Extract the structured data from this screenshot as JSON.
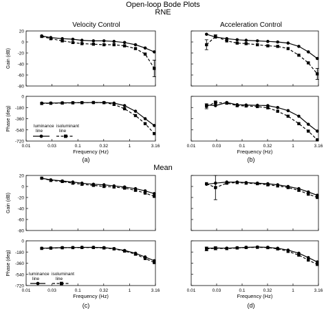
{
  "figure": {
    "title": "Open-loop Bode Plots",
    "row_labels": [
      "RNE",
      "Mean"
    ],
    "column_titles": [
      "Velocity Control",
      "Acceleration Control"
    ],
    "panel_labels": [
      "(a)",
      "(b)",
      "(c)",
      "(d)"
    ],
    "legend": {
      "solid": [
        "luminance",
        "line"
      ],
      "dashed": [
        "isoluminant",
        "line"
      ]
    },
    "styles": {
      "solid_color": "#000000",
      "dashed_color": "#000000"
    }
  },
  "chart_data": [
    {
      "type": "line",
      "panel": "a",
      "plot": "gain",
      "xlabel": "",
      "ylabel": "Gain (dB)",
      "x_scale": "log",
      "xlim": [
        0.01,
        3.16
      ],
      "ylim": [
        -80,
        20
      ],
      "x_ticks": [],
      "y_ticks": [
        "20",
        "0",
        "-20",
        "-40",
        "-60",
        "-80"
      ],
      "series": [
        {
          "style": "solid",
          "x": [
            0.02,
            0.03,
            0.05,
            0.08,
            0.12,
            0.2,
            0.32,
            0.5,
            0.8,
            1.3,
            2.0,
            3.0
          ],
          "y": [
            11,
            8,
            6,
            5,
            3,
            2,
            2,
            1,
            -1,
            -5,
            -11,
            -18
          ]
        },
        {
          "style": "dashed",
          "x": [
            0.02,
            0.03,
            0.05,
            0.08,
            0.12,
            0.2,
            0.32,
            0.5,
            0.8,
            1.3,
            2.0,
            3.0
          ],
          "y": [
            10,
            6,
            2,
            -1,
            -3,
            -4,
            -5,
            -5,
            -7,
            -12,
            -22,
            -48
          ],
          "err": [
            0,
            0,
            0,
            0,
            0,
            0,
            0,
            0,
            0,
            0,
            0,
            15
          ]
        }
      ]
    },
    {
      "type": "line",
      "panel": "a",
      "plot": "phase",
      "xlabel": "Frequency (Hz)",
      "ylabel": "Phase (deg)",
      "x_scale": "log",
      "xlim": [
        0.01,
        3.16
      ],
      "ylim": [
        -720,
        0
      ],
      "x_ticks": [
        "0.01",
        "0.03",
        "0.1",
        "0.32",
        "1",
        "3.16"
      ],
      "y_ticks": [
        "0",
        "-180",
        "-360",
        "-540",
        "-720"
      ],
      "series": [
        {
          "style": "solid",
          "x": [
            0.02,
            0.03,
            0.05,
            0.08,
            0.12,
            0.2,
            0.32,
            0.5,
            0.8,
            1.3,
            2.0,
            3.0
          ],
          "y": [
            -110,
            -108,
            -105,
            -103,
            -101,
            -100,
            -100,
            -110,
            -150,
            -240,
            -360,
            -470
          ]
        },
        {
          "style": "dashed",
          "x": [
            0.02,
            0.03,
            0.05,
            0.08,
            0.12,
            0.2,
            0.32,
            0.5,
            0.8,
            1.3,
            2.0,
            3.0
          ],
          "y": [
            -115,
            -112,
            -108,
            -105,
            -102,
            -100,
            -102,
            -130,
            -200,
            -310,
            -440,
            -600
          ]
        }
      ]
    },
    {
      "type": "line",
      "panel": "b",
      "plot": "gain",
      "xlabel": "",
      "ylabel": "",
      "x_scale": "log",
      "xlim": [
        0.01,
        3.16
      ],
      "ylim": [
        -80,
        20
      ],
      "x_ticks": [],
      "y_ticks": [],
      "series": [
        {
          "style": "solid",
          "x": [
            0.02,
            0.03,
            0.05,
            0.08,
            0.12,
            0.2,
            0.32,
            0.5,
            0.8,
            1.3,
            2.0,
            3.0
          ],
          "y": [
            14,
            9,
            6,
            4,
            3,
            2,
            1,
            0,
            -2,
            -8,
            -18,
            -30
          ]
        },
        {
          "style": "dashed",
          "x": [
            0.02,
            0.03,
            0.05,
            0.08,
            0.12,
            0.2,
            0.32,
            0.5,
            0.8,
            1.3,
            2.0,
            3.0
          ],
          "y": [
            -5,
            10,
            2,
            -2,
            -3,
            -5,
            -7,
            -8,
            -12,
            -24,
            -38,
            -58
          ],
          "err": [
            9,
            3,
            0,
            0,
            0,
            0,
            0,
            0,
            0,
            0,
            0,
            10
          ]
        }
      ]
    },
    {
      "type": "line",
      "panel": "b",
      "plot": "phase",
      "xlabel": "Frequency (Hz)",
      "ylabel": "",
      "x_scale": "log",
      "xlim": [
        0.01,
        3.16
      ],
      "ylim": [
        -720,
        0
      ],
      "x_ticks": [
        "0.01",
        "0.03",
        "0.1",
        "0.32",
        "1",
        "3.16"
      ],
      "y_ticks": [],
      "series": [
        {
          "style": "solid",
          "x": [
            0.02,
            0.03,
            0.05,
            0.08,
            0.12,
            0.2,
            0.32,
            0.5,
            0.8,
            1.3,
            2.0,
            3.0
          ],
          "y": [
            -140,
            -150,
            -100,
            -135,
            -140,
            -145,
            -150,
            -180,
            -230,
            -320,
            -450,
            -560
          ]
        },
        {
          "style": "dashed",
          "x": [
            0.02,
            0.03,
            0.05,
            0.08,
            0.12,
            0.2,
            0.32,
            0.5,
            0.8,
            1.3,
            2.0,
            3.0
          ],
          "y": [
            -160,
            -100,
            -110,
            -150,
            -155,
            -165,
            -185,
            -240,
            -320,
            -440,
            -560,
            -700
          ],
          "err": [
            40,
            25,
            0,
            0,
            0,
            0,
            0,
            0,
            0,
            0,
            0,
            0
          ]
        }
      ]
    },
    {
      "type": "line",
      "panel": "c",
      "plot": "gain",
      "xlabel": "",
      "ylabel": "Gain (dB)",
      "x_scale": "log",
      "xlim": [
        0.01,
        3.16
      ],
      "ylim": [
        -80,
        20
      ],
      "x_ticks": [],
      "y_ticks": [
        "20",
        "0",
        "-20",
        "-40",
        "-60",
        "-80"
      ],
      "series": [
        {
          "style": "solid",
          "x": [
            0.02,
            0.03,
            0.05,
            0.08,
            0.12,
            0.2,
            0.32,
            0.5,
            0.8,
            1.3,
            2.0,
            3.0
          ],
          "y": [
            15,
            12,
            10,
            8,
            6,
            4,
            3,
            1,
            -1,
            -4,
            -8,
            -13
          ]
        },
        {
          "style": "dashed",
          "x": [
            0.02,
            0.03,
            0.05,
            0.08,
            0.12,
            0.2,
            0.32,
            0.5,
            0.8,
            1.3,
            2.0,
            3.0
          ],
          "y": [
            15,
            11,
            9,
            6,
            4,
            2,
            0,
            -1,
            -3,
            -7,
            -12,
            -18
          ]
        }
      ]
    },
    {
      "type": "line",
      "panel": "c",
      "plot": "phase",
      "xlabel": "Frequency (Hz)",
      "ylabel": "Phase (deg)",
      "x_scale": "log",
      "xlim": [
        0.01,
        3.16
      ],
      "ylim": [
        -720,
        0
      ],
      "x_ticks": [
        "0.01",
        "0.03",
        "0.1",
        "0.32",
        "1",
        "3.16"
      ],
      "y_ticks": [
        "0",
        "-180",
        "-360",
        "-540",
        "-720"
      ],
      "series": [
        {
          "style": "solid",
          "x": [
            0.02,
            0.03,
            0.05,
            0.08,
            0.12,
            0.2,
            0.32,
            0.5,
            0.8,
            1.3,
            2.0,
            3.0
          ],
          "y": [
            -120,
            -115,
            -110,
            -108,
            -105,
            -105,
            -110,
            -125,
            -155,
            -200,
            -260,
            -320
          ]
        },
        {
          "style": "dashed",
          "x": [
            0.02,
            0.03,
            0.05,
            0.08,
            0.12,
            0.2,
            0.32,
            0.5,
            0.8,
            1.3,
            2.0,
            3.0
          ],
          "y": [
            -122,
            -118,
            -112,
            -110,
            -108,
            -108,
            -115,
            -130,
            -165,
            -215,
            -285,
            -350
          ]
        }
      ]
    },
    {
      "type": "line",
      "panel": "d",
      "plot": "gain",
      "xlabel": "",
      "ylabel": "",
      "x_scale": "log",
      "xlim": [
        0.01,
        3.16
      ],
      "ylim": [
        -80,
        20
      ],
      "x_ticks": [],
      "y_ticks": [],
      "series": [
        {
          "style": "solid",
          "x": [
            0.02,
            0.03,
            0.05,
            0.08,
            0.12,
            0.2,
            0.32,
            0.5,
            0.8,
            1.3,
            2.0,
            3.0
          ],
          "y": [
            4,
            6,
            8,
            8,
            7,
            6,
            5,
            3,
            0,
            -4,
            -10,
            -16
          ]
        },
        {
          "style": "dashed",
          "x": [
            0.02,
            0.03,
            0.05,
            0.08,
            0.12,
            0.2,
            0.32,
            0.5,
            0.8,
            1.3,
            2.0,
            3.0
          ],
          "y": [
            5,
            -2,
            6,
            7,
            6,
            5,
            3,
            1,
            -2,
            -7,
            -14,
            -20
          ],
          "err": [
            0,
            22,
            0,
            0,
            0,
            0,
            0,
            0,
            0,
            0,
            0,
            0
          ]
        }
      ]
    },
    {
      "type": "line",
      "panel": "d",
      "plot": "phase",
      "xlabel": "Frequency (Hz)",
      "ylabel": "",
      "x_scale": "log",
      "xlim": [
        0.01,
        3.16
      ],
      "ylim": [
        -720,
        0
      ],
      "x_ticks": [
        "0.01",
        "0.03",
        "0.1",
        "0.32",
        "1",
        "3.16"
      ],
      "y_ticks": [],
      "series": [
        {
          "style": "solid",
          "x": [
            0.02,
            0.03,
            0.05,
            0.08,
            0.12,
            0.2,
            0.32,
            0.5,
            0.8,
            1.3,
            2.0,
            3.0
          ],
          "y": [
            -120,
            -115,
            -118,
            -112,
            -105,
            -100,
            -105,
            -120,
            -150,
            -200,
            -270,
            -340
          ]
        },
        {
          "style": "dashed",
          "x": [
            0.02,
            0.03,
            0.05,
            0.08,
            0.12,
            0.2,
            0.32,
            0.5,
            0.8,
            1.3,
            2.0,
            3.0
          ],
          "y": [
            -130,
            -120,
            -125,
            -115,
            -108,
            -105,
            -110,
            -130,
            -170,
            -230,
            -310,
            -380
          ],
          "err": [
            30,
            25,
            0,
            0,
            0,
            0,
            0,
            0,
            0,
            0,
            0,
            0
          ]
        }
      ]
    }
  ]
}
